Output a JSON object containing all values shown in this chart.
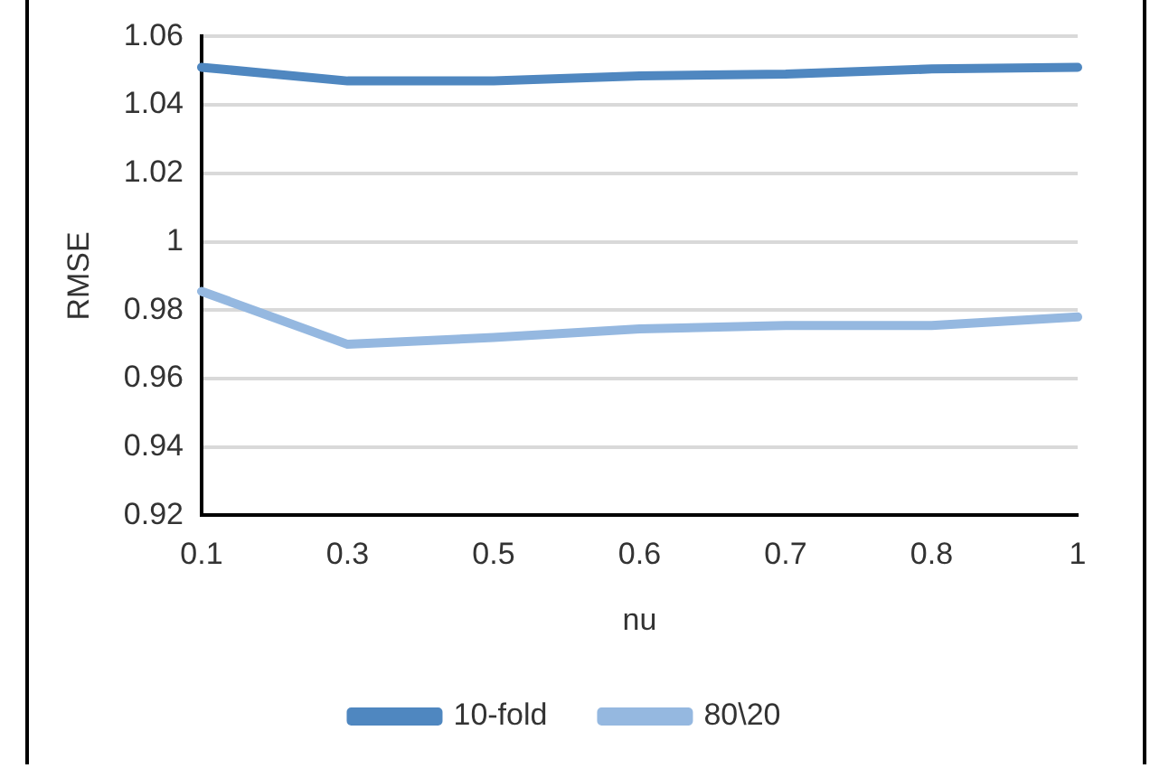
{
  "chart_data": {
    "type": "line",
    "xlabel": "nu",
    "ylabel": "RMSE",
    "categories": [
      "0.1",
      "0.3",
      "0.5",
      "0.6",
      "0.7",
      "0.8",
      "1"
    ],
    "series": [
      {
        "name": "10-fold",
        "color": "#4f87c0",
        "values": [
          1.051,
          1.047,
          1.047,
          1.0485,
          1.049,
          1.0505,
          1.051
        ]
      },
      {
        "name": "80\\20",
        "color": "#95b8e0",
        "values": [
          0.9855,
          0.97,
          0.972,
          0.9745,
          0.9755,
          0.9755,
          0.978
        ]
      }
    ],
    "ylim": [
      0.92,
      1.06
    ],
    "yticks": [
      0.92,
      0.94,
      0.96,
      0.98,
      {
        "value": 1,
        "label": "1"
      },
      1.02,
      1.04,
      1.06
    ],
    "grid": "y",
    "legend": "bottom",
    "marker": "none",
    "line_style": "solid"
  }
}
